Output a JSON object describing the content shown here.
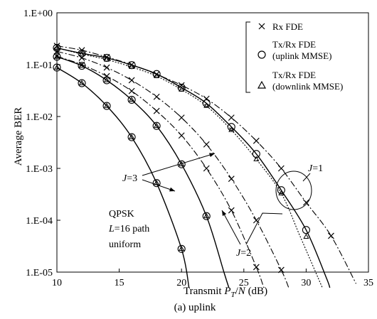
{
  "chart_data": {
    "type": "line",
    "xlabel_prefix": "Transmit ",
    "xlabel_var": "P",
    "xlabel_sub": "T",
    "xlabel_mid": "/",
    "xlabel_var2": "N",
    "xlabel_unit": " (dB)",
    "ylabel": "Average BER",
    "caption": "(a) uplink",
    "xlim": [
      10,
      35
    ],
    "ylog": true,
    "ylim": [
      1e-05,
      1
    ],
    "x_ticks": [
      10,
      15,
      20,
      25,
      30,
      35
    ],
    "x_tick_labels": [
      "10",
      "15",
      "20",
      "25",
      "30",
      "35"
    ],
    "y_ticks": [
      1e-05,
      0.0001,
      0.001,
      0.01,
      0.1,
      1
    ],
    "y_tick_labels": [
      "1.E-05",
      "1.E-04",
      "1.E-03",
      "1.E-02",
      "1.E-01",
      "1.E+00"
    ],
    "legend": {
      "position": "top-right",
      "entries": [
        {
          "marker": "x",
          "lines": [
            "Rx FDE"
          ]
        },
        {
          "marker": "circle",
          "lines": [
            "Tx/Rx FDE",
            "(uplink MMSE)"
          ]
        },
        {
          "marker": "triangle",
          "lines": [
            "Tx/Rx FDE",
            "(downlink MMSE)"
          ]
        }
      ]
    },
    "annotations": {
      "info_lines": [
        "QPSK",
        "=16 path",
        "uniform"
      ],
      "info_var": "L",
      "j1_var": "J",
      "j1_text": "=1",
      "j2_var": "J",
      "j2_text": "=2",
      "j3_var": "J",
      "j3_text": "=3"
    },
    "curves": [
      {
        "name": "J3-rx",
        "style": "dashdot",
        "points": [
          [
            10,
            0.145
          ],
          [
            12,
            0.1
          ],
          [
            14,
            0.06
          ],
          [
            16,
            0.031
          ],
          [
            18,
            0.0128
          ],
          [
            20,
            0.0043
          ],
          [
            22,
            0.001
          ],
          [
            24,
            0.000155
          ],
          [
            26,
            1.25e-05
          ],
          [
            26.6,
            5e-06
          ]
        ]
      },
      {
        "name": "J3-mmse",
        "style": "solid",
        "points": [
          [
            10,
            0.088
          ],
          [
            12,
            0.044
          ],
          [
            14,
            0.016
          ],
          [
            16,
            0.004
          ],
          [
            18,
            0.00052
          ],
          [
            20,
            2.8e-05
          ],
          [
            20.6,
            5e-06
          ]
        ]
      },
      {
        "name": "J2-rx",
        "style": "dashdot",
        "points": [
          [
            10,
            0.18
          ],
          [
            12,
            0.135
          ],
          [
            14,
            0.088
          ],
          [
            16,
            0.05
          ],
          [
            18,
            0.024
          ],
          [
            20,
            0.0095
          ],
          [
            22,
            0.0029
          ],
          [
            24,
            0.00063
          ],
          [
            26,
            0.0001
          ],
          [
            28,
            1.1e-05
          ],
          [
            28.6,
            5e-06
          ]
        ]
      },
      {
        "name": "J2-mmse",
        "style": "solid",
        "points": [
          [
            10,
            0.142
          ],
          [
            12,
            0.095
          ],
          [
            14,
            0.05
          ],
          [
            16,
            0.021
          ],
          [
            18,
            0.0066
          ],
          [
            20,
            0.0012
          ],
          [
            22,
            0.00012
          ],
          [
            23.4,
            1e-05
          ],
          [
            23.8,
            5e-06
          ]
        ]
      },
      {
        "name": "J1-rx",
        "style": "dashdot",
        "points": [
          [
            10,
            0.23
          ],
          [
            12,
            0.19
          ],
          [
            14,
            0.14
          ],
          [
            16,
            0.1
          ],
          [
            18,
            0.065
          ],
          [
            20,
            0.04
          ],
          [
            22,
            0.022
          ],
          [
            24,
            0.0095
          ],
          [
            26,
            0.0034
          ],
          [
            28,
            0.001
          ],
          [
            30,
            0.00022
          ],
          [
            32,
            5e-05
          ],
          [
            34,
            6e-06
          ]
        ]
      },
      {
        "name": "J1-mmse",
        "style": "solid",
        "points": [
          [
            10,
            0.21
          ],
          [
            12,
            0.165
          ],
          [
            14,
            0.135
          ],
          [
            16,
            0.098
          ],
          [
            18,
            0.066
          ],
          [
            20,
            0.036
          ],
          [
            22,
            0.018
          ],
          [
            24,
            0.0063
          ],
          [
            26,
            0.0019
          ],
          [
            28,
            0.00038
          ],
          [
            30,
            6.5e-05
          ],
          [
            31.6,
            8e-06
          ],
          [
            31.9,
            5e-06
          ]
        ]
      },
      {
        "name": "J1-dl",
        "style": "dotted",
        "points": [
          [
            10,
            0.21
          ],
          [
            12,
            0.16
          ],
          [
            14,
            0.125
          ],
          [
            16,
            0.09
          ],
          [
            18,
            0.06
          ],
          [
            20,
            0.033
          ],
          [
            22,
            0.016
          ],
          [
            24,
            0.0055
          ],
          [
            26,
            0.0015
          ],
          [
            28,
            0.00033
          ],
          [
            29.5,
            5e-05
          ],
          [
            31.3,
            5e-06
          ]
        ]
      }
    ],
    "markers": {
      "x": [
        [
          10,
          0.145
        ],
        [
          12,
          0.1
        ],
        [
          14,
          0.06
        ],
        [
          16,
          0.031
        ],
        [
          18,
          0.0128
        ],
        [
          20,
          0.0043
        ],
        [
          22,
          0.001
        ],
        [
          24,
          0.000155
        ],
        [
          26,
          1.25e-05
        ],
        [
          10,
          0.18
        ],
        [
          12,
          0.135
        ],
        [
          14,
          0.088
        ],
        [
          16,
          0.05
        ],
        [
          18,
          0.024
        ],
        [
          20,
          0.0095
        ],
        [
          22,
          0.0029
        ],
        [
          24,
          0.00063
        ],
        [
          26,
          0.0001
        ],
        [
          28,
          1.1e-05
        ],
        [
          10,
          0.23
        ],
        [
          12,
          0.19
        ],
        [
          14,
          0.14
        ],
        [
          16,
          0.1
        ],
        [
          18,
          0.065
        ],
        [
          20,
          0.04
        ],
        [
          22,
          0.022
        ],
        [
          24,
          0.0095
        ],
        [
          26,
          0.0034
        ],
        [
          28,
          0.001
        ],
        [
          30,
          0.00022
        ],
        [
          32,
          5e-05
        ]
      ],
      "circle": [
        [
          10,
          0.088
        ],
        [
          12,
          0.044
        ],
        [
          14,
          0.016
        ],
        [
          16,
          0.004
        ],
        [
          18,
          0.00052
        ],
        [
          20,
          2.8e-05
        ],
        [
          10,
          0.142
        ],
        [
          12,
          0.095
        ],
        [
          14,
          0.05
        ],
        [
          16,
          0.021
        ],
        [
          18,
          0.0066
        ],
        [
          20,
          0.0012
        ],
        [
          22,
          0.00012
        ],
        [
          10,
          0.21
        ],
        [
          12,
          0.165
        ],
        [
          14,
          0.135
        ],
        [
          16,
          0.098
        ],
        [
          18,
          0.066
        ],
        [
          20,
          0.036
        ],
        [
          22,
          0.018
        ],
        [
          24,
          0.0063
        ],
        [
          26,
          0.0019
        ],
        [
          28,
          0.00038
        ],
        [
          30,
          6.5e-05
        ]
      ],
      "triangle": [
        [
          10,
          0.088
        ],
        [
          12,
          0.044
        ],
        [
          14,
          0.016
        ],
        [
          16,
          0.004
        ],
        [
          18,
          0.00052
        ],
        [
          20,
          2.8e-05
        ],
        [
          10,
          0.142
        ],
        [
          12,
          0.095
        ],
        [
          14,
          0.05
        ],
        [
          16,
          0.021
        ],
        [
          18,
          0.0066
        ],
        [
          20,
          0.0012
        ],
        [
          22,
          0.00012
        ],
        [
          10,
          0.21
        ],
        [
          12,
          0.16
        ],
        [
          14,
          0.125
        ],
        [
          16,
          0.09
        ],
        [
          18,
          0.06
        ],
        [
          20,
          0.033
        ],
        [
          22,
          0.016
        ],
        [
          24,
          0.0055
        ],
        [
          26,
          0.0015
        ],
        [
          28,
          0.00033
        ],
        [
          30,
          4.8e-05
        ]
      ]
    }
  }
}
